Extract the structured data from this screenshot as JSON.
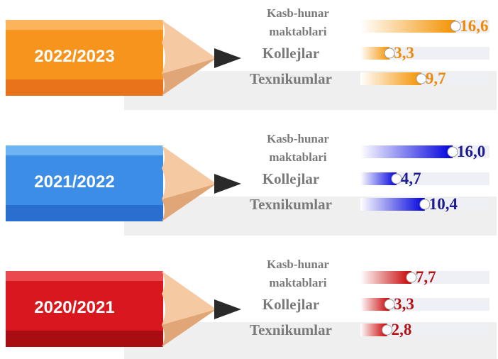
{
  "chart_data": [
    {
      "type": "bar",
      "title": "2022/2023",
      "categories": [
        "Kasb-hunar maktablari",
        "Kollejlar",
        "Texnikumlar"
      ],
      "values": [
        16.6,
        3.3,
        9.7
      ],
      "value_labels": [
        "16,6",
        "3,3",
        "9,7"
      ],
      "color": "#f39200"
    },
    {
      "type": "bar",
      "title": "2021/2022",
      "categories": [
        "Kasb-hunar maktablari",
        "Kollejlar",
        "Texnikumlar"
      ],
      "values": [
        16.0,
        4.7,
        10.4
      ],
      "value_labels": [
        "16,0",
        "4,7",
        "10,4"
      ],
      "color": "#0000dd"
    },
    {
      "type": "bar",
      "title": "2020/2021",
      "categories": [
        "Kasb-hunar maktablari",
        "Kollejlar",
        "Texnikumlar"
      ],
      "values": [
        7.7,
        3.3,
        2.8
      ],
      "value_labels": [
        "7,7",
        "3,3",
        "2,8"
      ],
      "color": "#c80000"
    }
  ]
}
